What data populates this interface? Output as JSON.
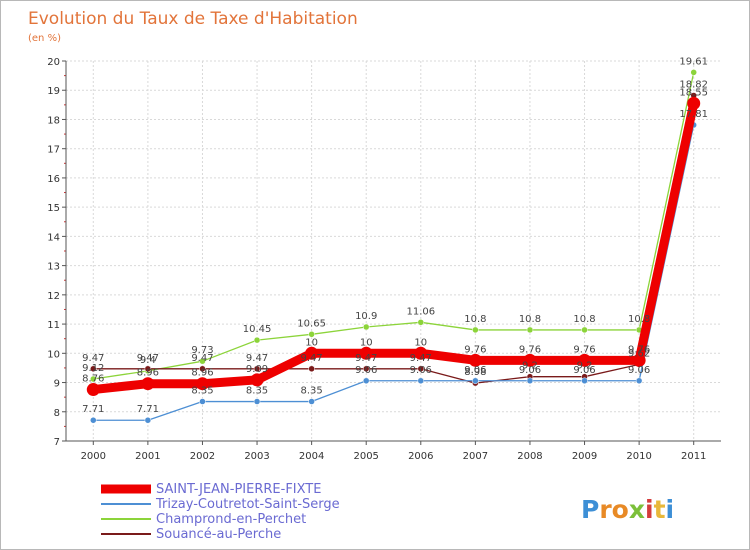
{
  "chart_data": {
    "type": "line",
    "title": "Evolution du Taux de Taxe d'Habitation",
    "subtitle": "(en %)",
    "x": [
      "2000",
      "2001",
      "2002",
      "2003",
      "2004",
      "2005",
      "2006",
      "2007",
      "2008",
      "2009",
      "2010",
      "2011"
    ],
    "ylim": [
      7,
      20
    ],
    "yticks": [
      "7",
      "8",
      "9",
      "10",
      "11",
      "12",
      "13",
      "14",
      "15",
      "16",
      "17",
      "18",
      "19",
      "20"
    ],
    "grid": true,
    "series": [
      {
        "name": "SAINT-JEAN-PIERRE-FIXTE",
        "color": "#ee0000",
        "values": [
          8.76,
          8.96,
          8.96,
          9.09,
          10.0,
          10.0,
          10.0,
          9.76,
          9.76,
          9.76,
          9.76,
          18.55
        ],
        "labels": [
          "8.76",
          "8.96",
          "8.96",
          "9.09",
          "10",
          "10",
          "10",
          "9.76",
          "9.76",
          "9.76",
          "9.76",
          "18.55"
        ]
      },
      {
        "name": "Trizay-Coutretot-Saint-Serge",
        "color": "#4d8fd4",
        "values": [
          7.71,
          7.71,
          8.35,
          8.35,
          8.35,
          9.06,
          9.06,
          9.06,
          9.06,
          9.06,
          9.06,
          17.81
        ],
        "labels": [
          "7.71",
          "7.71",
          "8.35",
          "8.35",
          "8.35",
          "9.06",
          "9.06",
          "9.06",
          "9.06",
          "9.06",
          "9.06",
          "17.81"
        ]
      },
      {
        "name": "Champrond-en-Perchet",
        "color": "#8cd43a",
        "values": [
          9.12,
          9.4,
          9.73,
          10.45,
          10.65,
          10.9,
          11.06,
          10.8,
          10.8,
          10.8,
          10.8,
          19.61
        ],
        "labels": [
          "9.12",
          "9.4",
          "9.73",
          "10.45",
          "10.65",
          "10.9",
          "11.06",
          "10.8",
          "10.8",
          "10.8",
          "10.8",
          "19.61"
        ]
      },
      {
        "name": "Souancé-au-Perche",
        "color": "#7a1a1a",
        "values": [
          9.47,
          9.47,
          9.47,
          9.47,
          9.47,
          9.47,
          9.47,
          8.98,
          9.2,
          9.2,
          9.62,
          18.82
        ],
        "labels": [
          "9.47",
          "9.47",
          "9.47",
          "9.47",
          "9.47",
          "9.47",
          "9.47",
          "8.98",
          "9.2",
          "9.2",
          "9.62",
          "18.82"
        ]
      }
    ]
  },
  "logo": {
    "letters": [
      "P",
      "r",
      "o",
      "x",
      "i",
      "t",
      "i"
    ],
    "colors": [
      "#3d8fd6",
      "#e88a26",
      "#e88a26",
      "#7cc03a",
      "#d43c3c",
      "#e8b83a",
      "#3d8fd6"
    ]
  }
}
